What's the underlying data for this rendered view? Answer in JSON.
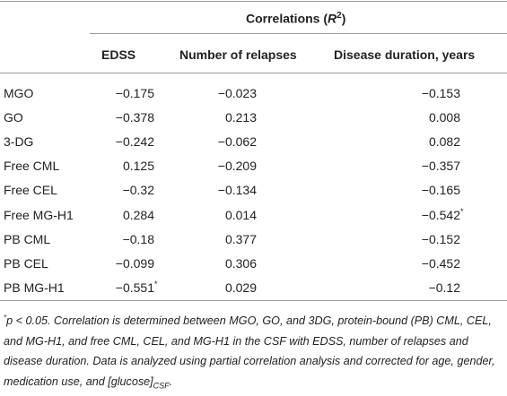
{
  "table": {
    "group_header": {
      "before": "Correlations (",
      "symbol": "R",
      "power": "2",
      "after": ")"
    },
    "columns": [
      "EDSS",
      "Number of relapses",
      "Disease duration, years"
    ],
    "rows": [
      [
        "MGO",
        "−0.175",
        "−0.023",
        "−0.153"
      ],
      [
        "GO",
        "−0.378",
        "0.213",
        "0.008"
      ],
      [
        "3-DG",
        "−0.242",
        "−0.062",
        "0.082"
      ],
      [
        "Free CML",
        "0.125",
        "−0.209",
        "−0.357"
      ],
      [
        "Free CEL",
        "−0.32",
        "−0.134",
        "−0.165"
      ],
      [
        "Free MG-H1",
        "0.284",
        "0.014",
        {
          "text": "−0.542",
          "note": "*"
        }
      ],
      [
        "PB CML",
        "−0.18",
        "0.377",
        "−0.152"
      ],
      [
        "PB CEL",
        "−0.099",
        "0.306",
        "−0.452"
      ],
      [
        "PB MG-H1",
        {
          "text": "−0.551",
          "note": "*"
        },
        "0.029",
        "−0.12"
      ]
    ]
  },
  "footnote": {
    "marker": "*",
    "text": "p < 0.05. Correlation is determined between MGO, GO, and 3DG, protein-bound (PB) CML, CEL, and MG-H1, and free CML, CEL, and MG-H1 in the CSF with EDSS, number of relapses and disease duration. Data is analyzed using partial correlation analysis and corrected for age, gender, medication use, and [glucose]",
    "sub": "CSF",
    "end": "."
  }
}
